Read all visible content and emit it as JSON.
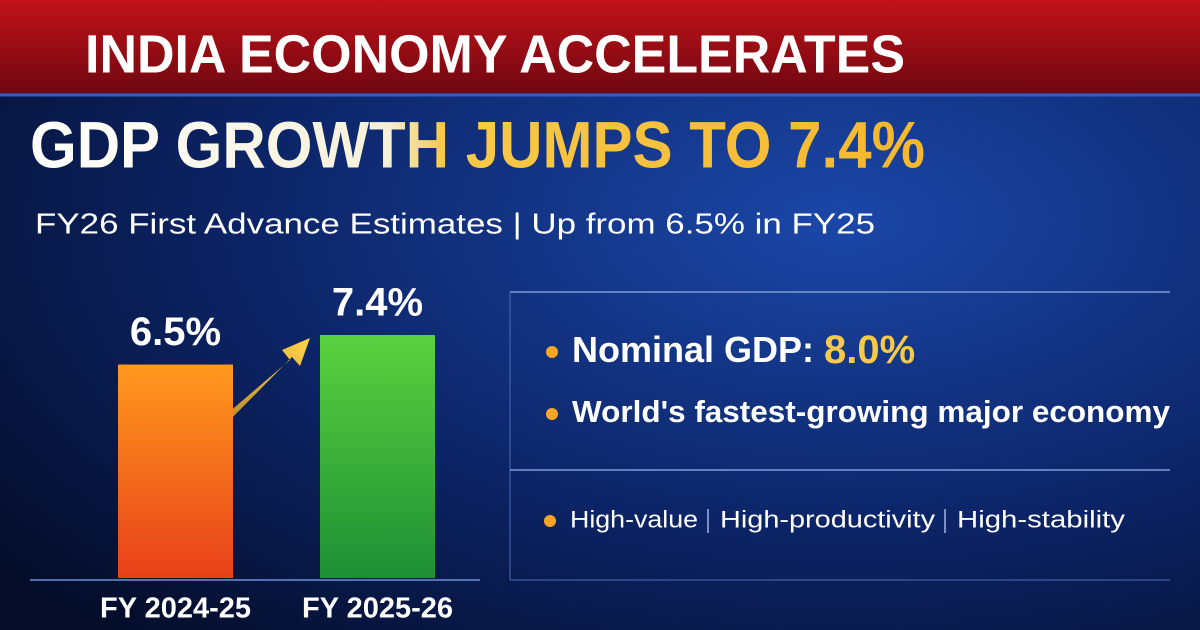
{
  "chart_data": {
    "type": "bar",
    "header": "INDIA ECONOMY ACCELERATES",
    "title": "GDP GROWTH JUMPS TO 7.4%",
    "subtitle": "FY26 First Advance Estimates | Up from 6.5% in FY25",
    "categories": [
      "FY 2024-25",
      "FY 2025-26"
    ],
    "values": [
      6.5,
      7.4
    ],
    "value_labels": [
      "6.5%",
      "7.4%"
    ],
    "colors": [
      "#f05a1a",
      "#2fae3a"
    ],
    "highlights": [
      {
        "label": "Nominal GDP:",
        "value": "8.0%"
      },
      {
        "label": "World's fastest-growing major economy"
      }
    ],
    "tags": [
      "High-value",
      "High-productivity",
      "High-stability"
    ]
  }
}
